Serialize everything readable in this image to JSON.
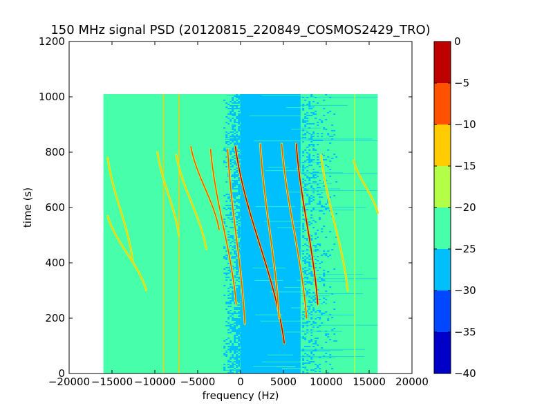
{
  "chart_data": {
    "type": "heatmap",
    "title": "150 MHz signal PSD (20120815_220849_COSMOS2429_TRO)",
    "xlabel": "frequency (Hz)",
    "ylabel": "time (s)",
    "xlim": [
      -20000,
      20000
    ],
    "ylim": [
      0,
      1200
    ],
    "x_ticks": [
      -20000,
      -15000,
      -10000,
      -5000,
      0,
      5000,
      10000,
      15000,
      20000
    ],
    "x_tick_labels": [
      "−20000",
      "−15000",
      "−10000",
      "−5000",
      "0",
      "5000",
      "10000",
      "15000",
      "20000"
    ],
    "y_ticks": [
      0,
      200,
      400,
      600,
      800,
      1000,
      1200
    ],
    "y_tick_labels": [
      "0",
      "200",
      "400",
      "600",
      "800",
      "1000",
      "1200"
    ],
    "data_extent": {
      "x": [
        -16000,
        16000
      ],
      "y": [
        0,
        1010
      ]
    },
    "background_level_band": [
      -25,
      -20
    ],
    "noisy_region_x": [
      -2000,
      9500
    ],
    "noisy_region_level_band": [
      -30,
      -25
    ],
    "vertical_lines": [
      {
        "x": -9000,
        "y_range": [
          0,
          1010
        ],
        "level": -15
      },
      {
        "x": -7200,
        "y_range": [
          0,
          1010
        ],
        "level": -15
      },
      {
        "x": 13300,
        "y_range": [
          0,
          1010
        ],
        "level": -20
      }
    ],
    "traces": [
      {
        "x_top": -15500,
        "y_top": 780,
        "x_bottom": -12600,
        "y_bottom": 410,
        "peak_level": -15
      },
      {
        "x_top": -15500,
        "y_top": 570,
        "x_bottom": -11000,
        "y_bottom": 300,
        "peak_level": -15
      },
      {
        "x_top": -9700,
        "y_top": 800,
        "x_bottom": -7200,
        "y_bottom": 500,
        "peak_level": -15
      },
      {
        "x_top": -7500,
        "y_top": 790,
        "x_bottom": -4000,
        "y_bottom": 450,
        "peak_level": -15
      },
      {
        "x_top": -5800,
        "y_top": 820,
        "x_bottom": -2500,
        "y_bottom": 520,
        "peak_level": -10
      },
      {
        "x_top": -3500,
        "y_top": 810,
        "x_bottom": -500,
        "y_bottom": 250,
        "peak_level": -10
      },
      {
        "x_top": -1500,
        "y_top": 810,
        "x_bottom": 500,
        "y_bottom": 180,
        "peak_level": -10
      },
      {
        "x_top": -600,
        "y_top": 820,
        "x_bottom": 5100,
        "y_bottom": 110,
        "peak_level": 0
      },
      {
        "x_top": 2300,
        "y_top": 830,
        "x_bottom": 4500,
        "y_bottom": 200,
        "peak_level": -10
      },
      {
        "x_top": 4800,
        "y_top": 830,
        "x_bottom": 7700,
        "y_bottom": 200,
        "peak_level": -10
      },
      {
        "x_top": 6500,
        "y_top": 830,
        "x_bottom": 9000,
        "y_bottom": 250,
        "peak_level": -5
      },
      {
        "x_top": 9400,
        "y_top": 790,
        "x_bottom": 12500,
        "y_bottom": 300,
        "peak_level": -15
      },
      {
        "x_top": 13200,
        "y_top": 770,
        "x_bottom": 16000,
        "y_bottom": 580,
        "peak_level": -15
      }
    ],
    "colorbar": {
      "min": -40,
      "max": 0,
      "ticks": [
        0,
        -5,
        -10,
        -15,
        -20,
        -25,
        -30,
        -35,
        -40
      ],
      "tick_labels": [
        "0",
        "−5",
        "−10",
        "−15",
        "−20",
        "−25",
        "−30",
        "−35",
        "−40"
      ],
      "bands": [
        {
          "from": -5,
          "to": 0,
          "color": "#bf0000"
        },
        {
          "from": -10,
          "to": -5,
          "color": "#ff5100"
        },
        {
          "from": -15,
          "to": -10,
          "color": "#ffcc00"
        },
        {
          "from": -20,
          "to": -15,
          "color": "#b3ff47"
        },
        {
          "from": -25,
          "to": -20,
          "color": "#47ffaa"
        },
        {
          "from": -30,
          "to": -25,
          "color": "#00bfff"
        },
        {
          "from": -35,
          "to": -30,
          "color": "#0047ff"
        },
        {
          "from": -40,
          "to": -35,
          "color": "#0000c8"
        }
      ]
    }
  }
}
